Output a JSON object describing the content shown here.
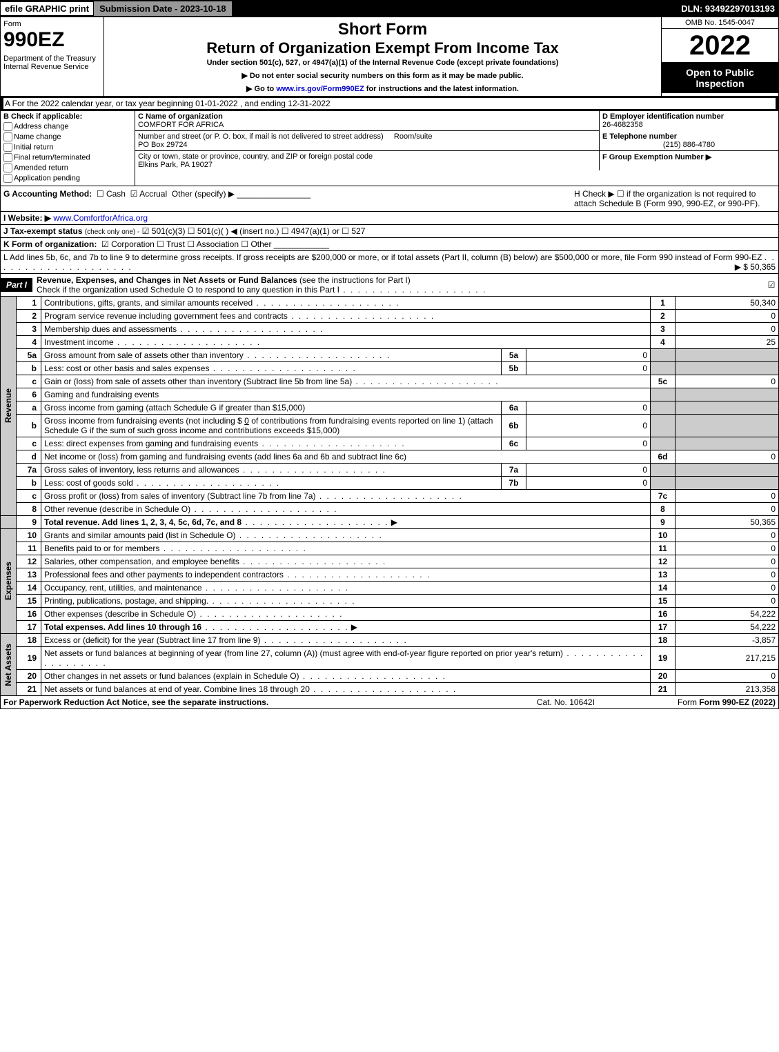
{
  "topbar": {
    "efile": "efile GRAPHIC print",
    "submission": "Submission Date - 2023-10-18",
    "dln": "DLN: 93492297013193"
  },
  "header": {
    "form_word": "Form",
    "form_num": "990EZ",
    "dept": "Department of the Treasury\nInternal Revenue Service",
    "short_form": "Short Form",
    "return_title": "Return of Organization Exempt From Income Tax",
    "under": "Under section 501(c), 527, or 4947(a)(1) of the Internal Revenue Code (except private foundations)",
    "note1": "▶ Do not enter social security numbers on this form as it may be made public.",
    "note2_pre": "▶ Go to ",
    "note2_link": "www.irs.gov/Form990EZ",
    "note2_post": " for instructions and the latest information.",
    "omb": "OMB No. 1545-0047",
    "year": "2022",
    "open": "Open to Public Inspection"
  },
  "row_a": "A  For the 2022 calendar year, or tax year beginning 01-01-2022 , and ending 12-31-2022",
  "b": {
    "title": "B  Check if applicable:",
    "opts": [
      "Address change",
      "Name change",
      "Initial return",
      "Final return/terminated",
      "Amended return",
      "Application pending"
    ]
  },
  "c": {
    "label": "C Name of organization",
    "name": "COMFORT FOR AFRICA",
    "addr_label": "Number and street (or P. O. box, if mail is not delivered to street address)",
    "room": "Room/suite",
    "addr": "PO Box 29724",
    "city_label": "City or town, state or province, country, and ZIP or foreign postal code",
    "city": "Elkins Park, PA   19027"
  },
  "d": {
    "label": "D Employer identification number",
    "val": "26-4682358"
  },
  "e": {
    "label": "E Telephone number",
    "val": "(215) 886-4780"
  },
  "f": {
    "label": "F Group Exemption Number   ▶",
    "val": ""
  },
  "g": {
    "label": "G Accounting Method:",
    "cash": "Cash",
    "accrual": "Accrual",
    "other": "Other (specify) ▶"
  },
  "h": {
    "text": "H  Check ▶  ☐  if the organization is not required to attach Schedule B (Form 990, 990-EZ, or 990-PF)."
  },
  "i": {
    "label": "I Website: ▶",
    "val": "www.ComfortforAfrica.org"
  },
  "j": {
    "label": "J Tax-exempt status",
    "note": "(check only one) -",
    "opts": "☑ 501(c)(3)  ☐ 501(c)(  ) ◀ (insert no.)  ☐ 4947(a)(1) or  ☐ 527"
  },
  "k": {
    "label": "K Form of organization:",
    "opts": "☑ Corporation   ☐ Trust   ☐ Association   ☐ Other"
  },
  "l": {
    "text": "L Add lines 5b, 6c, and 7b to line 9 to determine gross receipts. If gross receipts are $200,000 or more, or if total assets (Part II, column (B) below) are $500,000 or more, file Form 990 instead of Form 990-EZ",
    "val": "▶ $ 50,365"
  },
  "part1": {
    "label": "Part I",
    "title": "Revenue, Expenses, and Changes in Net Assets or Fund Balances",
    "sub": "(see the instructions for Part I)",
    "check": "Check if the organization used Schedule O to respond to any question in this Part I"
  },
  "vtabs": {
    "rev": "Revenue",
    "exp": "Expenses",
    "net": "Net Assets"
  },
  "lines": {
    "l1": {
      "n": "1",
      "d": "Contributions, gifts, grants, and similar amounts received",
      "c": "1",
      "v": "50,340"
    },
    "l2": {
      "n": "2",
      "d": "Program service revenue including government fees and contracts",
      "c": "2",
      "v": "0"
    },
    "l3": {
      "n": "3",
      "d": "Membership dues and assessments",
      "c": "3",
      "v": "0"
    },
    "l4": {
      "n": "4",
      "d": "Investment income",
      "c": "4",
      "v": "25"
    },
    "l5a": {
      "n": "5a",
      "d": "Gross amount from sale of assets other than inventory",
      "sn": "5a",
      "sv": "0"
    },
    "l5b": {
      "n": "b",
      "d": "Less: cost or other basis and sales expenses",
      "sn": "5b",
      "sv": "0"
    },
    "l5c": {
      "n": "c",
      "d": "Gain or (loss) from sale of assets other than inventory (Subtract line 5b from line 5a)",
      "c": "5c",
      "v": "0"
    },
    "l6": {
      "n": "6",
      "d": "Gaming and fundraising events"
    },
    "l6a": {
      "n": "a",
      "d": "Gross income from gaming (attach Schedule G if greater than $15,000)",
      "sn": "6a",
      "sv": "0"
    },
    "l6b": {
      "n": "b",
      "d1": "Gross income from fundraising events (not including $",
      "amt": "0",
      "d2": "of contributions from fundraising events reported on line 1) (attach Schedule G if the sum of such gross income and contributions exceeds $15,000)",
      "sn": "6b",
      "sv": "0"
    },
    "l6c": {
      "n": "c",
      "d": "Less: direct expenses from gaming and fundraising events",
      "sn": "6c",
      "sv": "0"
    },
    "l6d": {
      "n": "d",
      "d": "Net income or (loss) from gaming and fundraising events (add lines 6a and 6b and subtract line 6c)",
      "c": "6d",
      "v": "0"
    },
    "l7a": {
      "n": "7a",
      "d": "Gross sales of inventory, less returns and allowances",
      "sn": "7a",
      "sv": "0"
    },
    "l7b": {
      "n": "b",
      "d": "Less: cost of goods sold",
      "sn": "7b",
      "sv": "0"
    },
    "l7c": {
      "n": "c",
      "d": "Gross profit or (loss) from sales of inventory (Subtract line 7b from line 7a)",
      "c": "7c",
      "v": "0"
    },
    "l8": {
      "n": "8",
      "d": "Other revenue (describe in Schedule O)",
      "c": "8",
      "v": "0"
    },
    "l9": {
      "n": "9",
      "d": "Total revenue. Add lines 1, 2, 3, 4, 5c, 6d, 7c, and 8",
      "c": "9",
      "v": "50,365"
    },
    "l10": {
      "n": "10",
      "d": "Grants and similar amounts paid (list in Schedule O)",
      "c": "10",
      "v": "0"
    },
    "l11": {
      "n": "11",
      "d": "Benefits paid to or for members",
      "c": "11",
      "v": "0"
    },
    "l12": {
      "n": "12",
      "d": "Salaries, other compensation, and employee benefits",
      "c": "12",
      "v": "0"
    },
    "l13": {
      "n": "13",
      "d": "Professional fees and other payments to independent contractors",
      "c": "13",
      "v": "0"
    },
    "l14": {
      "n": "14",
      "d": "Occupancy, rent, utilities, and maintenance",
      "c": "14",
      "v": "0"
    },
    "l15": {
      "n": "15",
      "d": "Printing, publications, postage, and shipping.",
      "c": "15",
      "v": "0"
    },
    "l16": {
      "n": "16",
      "d": "Other expenses (describe in Schedule O)",
      "c": "16",
      "v": "54,222"
    },
    "l17": {
      "n": "17",
      "d": "Total expenses. Add lines 10 through 16",
      "c": "17",
      "v": "54,222"
    },
    "l18": {
      "n": "18",
      "d": "Excess or (deficit) for the year (Subtract line 17 from line 9)",
      "c": "18",
      "v": "-3,857"
    },
    "l19": {
      "n": "19",
      "d": "Net assets or fund balances at beginning of year (from line 27, column (A)) (must agree with end-of-year figure reported on prior year's return)",
      "c": "19",
      "v": "217,215"
    },
    "l20": {
      "n": "20",
      "d": "Other changes in net assets or fund balances (explain in Schedule O)",
      "c": "20",
      "v": "0"
    },
    "l21": {
      "n": "21",
      "d": "Net assets or fund balances at end of year. Combine lines 18 through 20",
      "c": "21",
      "v": "213,358"
    }
  },
  "footer": {
    "pra": "For Paperwork Reduction Act Notice, see the separate instructions.",
    "cat": "Cat. No. 10642I",
    "form": "Form 990-EZ (2022)"
  }
}
